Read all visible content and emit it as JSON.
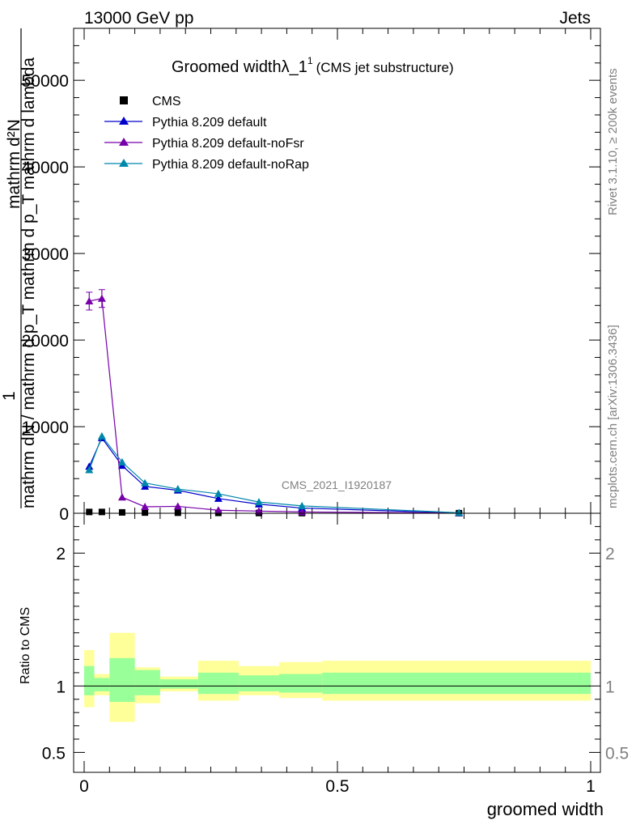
{
  "header": {
    "left": "13000 GeV pp",
    "right": "Jets"
  },
  "main_title": {
    "prefix": "Groomed width",
    "lambda": "λ_1",
    "sup": "1",
    "suffix": "(CMS jet substructure)"
  },
  "side_labels": {
    "rivet": "Rivet 3.1.10, ≥ 200k events",
    "mcplots": "mcplots.cern.ch [arXiv:1306.3436]",
    "analysis": "CMS_2021_I1920187"
  },
  "y_label_main": {
    "numerator": "1",
    "line1": "mathrm dN / mathrm d p_T mathrm d p_T mathrm d lambda",
    "line2": "mathrm d²N"
  },
  "x_label": "groomed width",
  "ratio_label": "Ratio to CMS",
  "colors": {
    "cms": "#000000",
    "default": "#0000cc",
    "noFsr": "#7700aa",
    "noRap": "#0088aa",
    "band_outer": "#ffff99",
    "band_inner": "#99ff99"
  },
  "chart_data": [
    {
      "type": "line",
      "title": "Groomed width λ_1^1 (CMS jet substructure)",
      "xlabel": "groomed width",
      "xlim": [
        0,
        1
      ],
      "ylim": [
        0,
        56000
      ],
      "x_ticks": [
        0,
        0.5,
        1
      ],
      "x_tick_labels": [
        "0",
        "0.5",
        "1"
      ],
      "y_ticks": [
        0,
        10000,
        20000,
        30000,
        40000,
        50000
      ],
      "y_tick_labels": [
        "0",
        "10000",
        "20000",
        "30000",
        "40000",
        "50000"
      ],
      "legend": "top-left",
      "x": [
        0.01,
        0.035,
        0.075,
        0.12,
        0.185,
        0.265,
        0.345,
        0.43,
        0.74
      ],
      "series": [
        {
          "name": "CMS",
          "marker": "square",
          "values": [
            150,
            150,
            100,
            80,
            60,
            40,
            30,
            20,
            10
          ]
        },
        {
          "name": "Pythia 8.209 default",
          "marker": "triangle",
          "values": [
            5400,
            8700,
            5500,
            3100,
            2650,
            1700,
            1050,
            600,
            30
          ]
        },
        {
          "name": "Pythia 8.209 default-noFsr",
          "marker": "triangle",
          "values": [
            24500,
            24800,
            1850,
            750,
            800,
            350,
            250,
            150,
            20
          ]
        },
        {
          "name": "Pythia 8.209 default-noRap",
          "marker": "triangle",
          "values": [
            5000,
            8900,
            5900,
            3500,
            2800,
            2250,
            1300,
            850,
            60
          ]
        }
      ]
    },
    {
      "type": "area",
      "ylabel": "Ratio to CMS",
      "xlabel": "groomed width",
      "xlim": [
        0,
        1
      ],
      "ylim": [
        0.35,
        2.3
      ],
      "y_ticks": [
        0.5,
        1,
        2
      ],
      "y_tick_labels": [
        "0.5",
        "1",
        "2"
      ],
      "x_ticks": [
        0,
        0.5,
        1
      ],
      "x_tick_labels": [
        "0",
        "0.5",
        "1"
      ],
      "bins": [
        {
          "lo": 0.0,
          "hi": 0.02,
          "outer": [
            0.84,
            1.27
          ],
          "inner": [
            0.93,
            1.15
          ]
        },
        {
          "lo": 0.02,
          "hi": 0.05,
          "outer": [
            0.93,
            1.09
          ],
          "inner": [
            0.96,
            1.06
          ]
        },
        {
          "lo": 0.05,
          "hi": 0.1,
          "outer": [
            0.73,
            1.4
          ],
          "inner": [
            0.88,
            1.21
          ]
        },
        {
          "lo": 0.1,
          "hi": 0.15,
          "outer": [
            0.87,
            1.14
          ],
          "inner": [
            0.93,
            1.12
          ]
        },
        {
          "lo": 0.15,
          "hi": 0.225,
          "outer": [
            0.96,
            1.07
          ],
          "inner": [
            0.98,
            1.05
          ]
        },
        {
          "lo": 0.225,
          "hi": 0.305,
          "outer": [
            0.89,
            1.19
          ],
          "inner": [
            0.94,
            1.1
          ]
        },
        {
          "lo": 0.305,
          "hi": 0.385,
          "outer": [
            0.93,
            1.15
          ],
          "inner": [
            0.96,
            1.08
          ]
        },
        {
          "lo": 0.385,
          "hi": 0.47,
          "outer": [
            0.91,
            1.18
          ],
          "inner": [
            0.95,
            1.09
          ]
        },
        {
          "lo": 0.47,
          "hi": 1.0,
          "outer": [
            0.89,
            1.19
          ],
          "inner": [
            0.94,
            1.1
          ]
        }
      ]
    }
  ]
}
